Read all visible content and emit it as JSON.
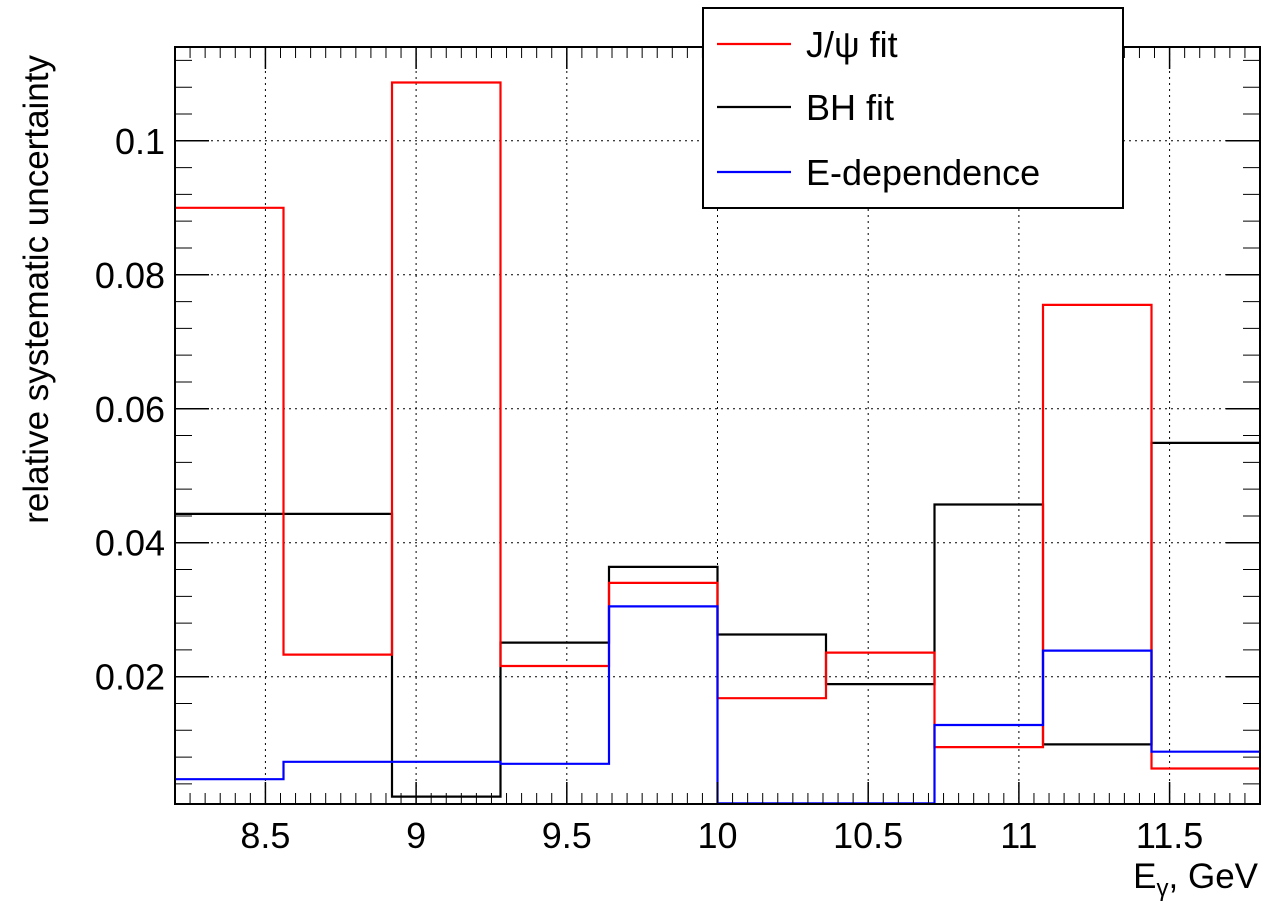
{
  "chart_data": {
    "type": "line",
    "step": true,
    "xlabel": "E",
    "xlabel_sub": "γ",
    "xlabel_unit": ", GeV",
    "ylabel": "relative systematic uncertainty",
    "xlim": [
      8.2,
      11.8
    ],
    "ylim": [
      0.001,
      0.114
    ],
    "xticks": [
      8.5,
      9,
      9.5,
      10,
      10.5,
      11,
      11.5
    ],
    "xtick_labels": [
      "8.5",
      "9",
      "9.5",
      "10",
      "10.5",
      "11",
      "11.5"
    ],
    "yticks": [
      0.02,
      0.04,
      0.06,
      0.08,
      0.1
    ],
    "ytick_labels": [
      "0.02",
      "0.04",
      "0.06",
      "0.08",
      "0.1"
    ],
    "grid": true,
    "legend_position": "top-right",
    "bin_edges": [
      8.2,
      8.56,
      8.92,
      9.28,
      9.64,
      10.0,
      10.36,
      10.72,
      11.08,
      11.44,
      11.8
    ],
    "series": [
      {
        "name": "J/ψ fit",
        "color": "#ff0000",
        "values": [
          0.09,
          0.0233,
          0.1087,
          0.0216,
          0.034,
          0.0168,
          0.0236,
          0.0095,
          0.0755,
          0.0063
        ]
      },
      {
        "name": "BH fit",
        "color": "#000000",
        "values": [
          0.0443,
          0.0443,
          0.0021,
          0.0251,
          0.0364,
          0.0263,
          0.0189,
          0.0457,
          0.0099,
          0.0549
        ]
      },
      {
        "name": "E-dependence",
        "color": "#0000ff",
        "values": [
          0.0047,
          0.0073,
          0.0073,
          0.007,
          0.0305,
          0.0011,
          0.0011,
          0.0128,
          0.0239,
          0.0088
        ]
      }
    ]
  }
}
